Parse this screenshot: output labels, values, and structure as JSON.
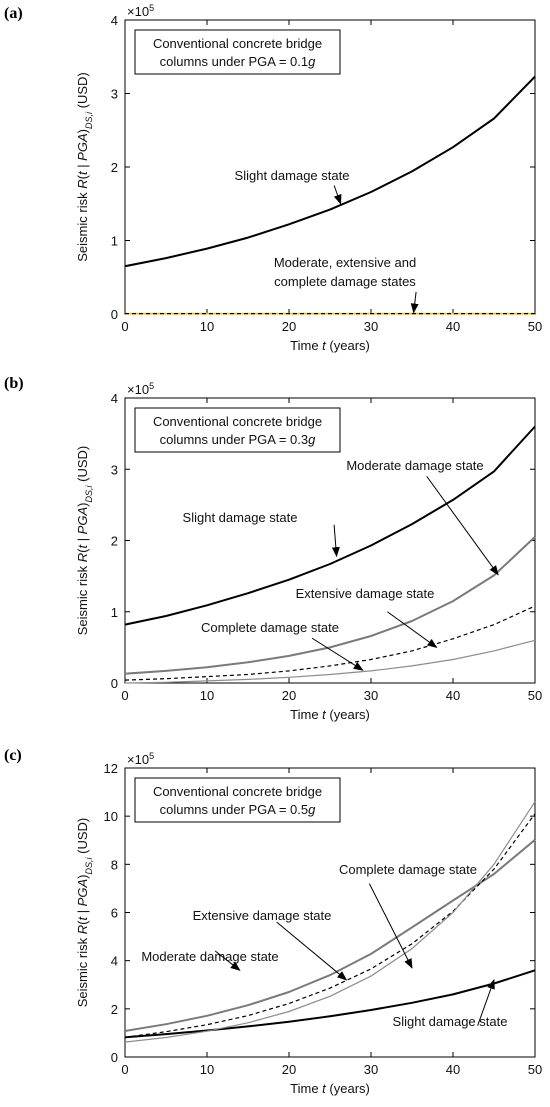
{
  "chart_data": [
    {
      "panel": "(a)",
      "type": "line",
      "xlabel_prefix": "Time ",
      "xlabel_var": "t",
      "xlabel_suffix": " (years)",
      "ylabel": "Seismic risk R(t | PGA)DS,i (USD)",
      "multiplier": "×10",
      "multiplier_exp": "5",
      "xlim": [
        0,
        50
      ],
      "ylim": [
        0,
        4
      ],
      "xticks": [
        0,
        10,
        20,
        30,
        40,
        50
      ],
      "yticks": [
        0,
        1,
        2,
        3,
        4
      ],
      "box_line1": "Conventional concrete bridge",
      "box_line2_prefix": "columns under PGA = 0.1",
      "box_line2_var": "g",
      "series": [
        {
          "id": "slight",
          "color": "#000000",
          "width": 2.0,
          "dash": "",
          "x": [
            0,
            5,
            10,
            15,
            20,
            25,
            30,
            35,
            40,
            45,
            50
          ],
          "y": [
            0.65,
            0.76,
            0.89,
            1.04,
            1.22,
            1.42,
            1.66,
            1.94,
            2.27,
            2.66,
            3.23
          ]
        },
        {
          "id": "moderate-extensive-complete",
          "color": "#f2c400",
          "width": 1.8,
          "dash": "",
          "x": [
            0,
            50
          ],
          "y": [
            0.005,
            0.005
          ]
        },
        {
          "id": "moderate-extensive-complete-dash",
          "color": "#000000",
          "width": 1.2,
          "dash": "4,3",
          "x": [
            0,
            50
          ],
          "y": [
            0.005,
            0.005
          ]
        }
      ],
      "annotations": [
        {
          "id": "slight",
          "lines": [
            "Slight damage state"
          ]
        },
        {
          "id": "others",
          "lines": [
            "Moderate, extensive and",
            "complete damage states"
          ]
        }
      ]
    },
    {
      "panel": "(b)",
      "type": "line",
      "xlabel_prefix": "Time ",
      "xlabel_var": "t",
      "xlabel_suffix": " (years)",
      "ylabel": "Seismic risk R(t | PGA)DS,i (USD)",
      "multiplier": "×10",
      "multiplier_exp": "5",
      "xlim": [
        0,
        50
      ],
      "ylim": [
        0,
        4
      ],
      "xticks": [
        0,
        10,
        20,
        30,
        40,
        50
      ],
      "yticks": [
        0,
        1,
        2,
        3,
        4
      ],
      "box_line1": "Conventional concrete bridge",
      "box_line2_prefix": "columns under PGA = 0.3",
      "box_line2_var": "g",
      "series": [
        {
          "id": "slight",
          "color": "#000000",
          "width": 2.0,
          "dash": "",
          "x": [
            0,
            5,
            10,
            15,
            20,
            25,
            30,
            35,
            40,
            45,
            50
          ],
          "y": [
            0.82,
            0.94,
            1.09,
            1.26,
            1.45,
            1.67,
            1.93,
            2.23,
            2.57,
            2.97,
            3.6
          ]
        },
        {
          "id": "moderate",
          "color": "#7a7a7a",
          "width": 2.0,
          "dash": "",
          "x": [
            0,
            5,
            10,
            15,
            20,
            25,
            30,
            35,
            40,
            45,
            50
          ],
          "y": [
            0.13,
            0.17,
            0.22,
            0.29,
            0.38,
            0.5,
            0.66,
            0.87,
            1.15,
            1.51,
            2.05
          ]
        },
        {
          "id": "extensive",
          "color": "#000000",
          "width": 1.2,
          "dash": "4,3",
          "x": [
            0,
            5,
            10,
            15,
            20,
            25,
            30,
            35,
            40,
            45,
            50
          ],
          "y": [
            0.04,
            0.06,
            0.09,
            0.12,
            0.17,
            0.24,
            0.33,
            0.45,
            0.62,
            0.82,
            1.08
          ]
        },
        {
          "id": "complete",
          "color": "#8c8c8c",
          "width": 1.2,
          "dash": "",
          "x": [
            0,
            5,
            10,
            15,
            20,
            25,
            30,
            35,
            40,
            45,
            50
          ],
          "y": [
            0.0,
            0.01,
            0.03,
            0.05,
            0.08,
            0.12,
            0.17,
            0.24,
            0.33,
            0.45,
            0.6
          ]
        }
      ],
      "annotations": [
        {
          "id": "moderate",
          "lines": [
            "Moderate damage state"
          ]
        },
        {
          "id": "slight",
          "lines": [
            "Slight damage state"
          ]
        },
        {
          "id": "extensive",
          "lines": [
            "Extensive damage state"
          ]
        },
        {
          "id": "complete",
          "lines": [
            "Complete damage state"
          ]
        }
      ]
    },
    {
      "panel": "(c)",
      "type": "line",
      "xlabel_prefix": "Time ",
      "xlabel_var": "t",
      "xlabel_suffix": " (years)",
      "ylabel": "Seismic risk R(t | PGA)DS,i (USD)",
      "multiplier": "×10",
      "multiplier_exp": "5",
      "xlim": [
        0,
        50
      ],
      "ylim": [
        0,
        12
      ],
      "xticks": [
        0,
        10,
        20,
        30,
        40,
        50
      ],
      "yticks": [
        0,
        2,
        4,
        6,
        8,
        10,
        12
      ],
      "box_line1": "Conventional concrete bridge",
      "box_line2_prefix": "columns under PGA = 0.5",
      "box_line2_var": "g",
      "series": [
        {
          "id": "slight",
          "color": "#000000",
          "width": 2.0,
          "dash": "",
          "x": [
            0,
            5,
            10,
            15,
            20,
            25,
            30,
            35,
            40,
            45,
            50
          ],
          "y": [
            0.82,
            0.95,
            1.1,
            1.27,
            1.46,
            1.69,
            1.95,
            2.25,
            2.6,
            3.05,
            3.6
          ]
        },
        {
          "id": "moderate",
          "color": "#7a7a7a",
          "width": 2.0,
          "dash": "",
          "x": [
            0,
            5,
            10,
            15,
            20,
            25,
            30,
            35,
            40,
            45,
            50
          ],
          "y": [
            1.08,
            1.36,
            1.71,
            2.15,
            2.7,
            3.4,
            4.28,
            5.38,
            6.5,
            7.6,
            9.02
          ]
        },
        {
          "id": "extensive",
          "color": "#000000",
          "width": 1.2,
          "dash": "4,3",
          "x": [
            0,
            5,
            10,
            15,
            20,
            25,
            30,
            35,
            40,
            45,
            50
          ],
          "y": [
            0.82,
            1.05,
            1.34,
            1.72,
            2.22,
            2.86,
            3.66,
            4.7,
            6.05,
            7.8,
            10.1
          ]
        },
        {
          "id": "complete",
          "color": "#8c8c8c",
          "width": 1.2,
          "dash": "",
          "x": [
            0,
            5,
            10,
            15,
            20,
            25,
            30,
            35,
            40,
            45,
            50
          ],
          "y": [
            0.62,
            0.81,
            1.07,
            1.42,
            1.89,
            2.52,
            3.36,
            4.5,
            6.0,
            8.0,
            10.6
          ]
        }
      ],
      "annotations": [
        {
          "id": "complete",
          "lines": [
            "Complete damage state"
          ]
        },
        {
          "id": "extensive",
          "lines": [
            "Extensive damage state"
          ]
        },
        {
          "id": "moderate",
          "lines": [
            "Moderate damage state"
          ]
        },
        {
          "id": "slight",
          "lines": [
            "Slight damage state"
          ]
        }
      ]
    }
  ]
}
